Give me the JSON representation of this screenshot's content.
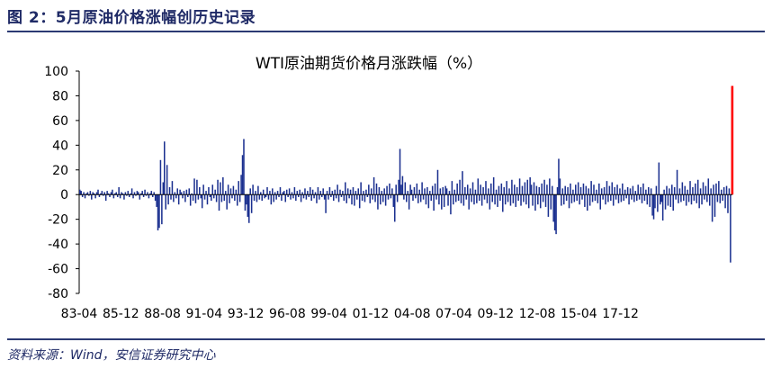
{
  "figure": {
    "title": "图 2：5月原油价格涨幅创历史记录",
    "source": "资料来源：Wind，安信证券研究中心"
  },
  "colors": {
    "accent": "#1f2a66",
    "bars": "#1a2f8f",
    "highlight": "#ff0000",
    "axis": "#000000"
  },
  "chart_data": {
    "type": "bar",
    "title": "WTI原油期货价格月涨跌幅（%）",
    "xlabel": "",
    "ylabel": "",
    "ylim": [
      -80,
      100
    ],
    "yticks": [
      100,
      80,
      60,
      40,
      20,
      0,
      -20,
      -40,
      -60,
      -80
    ],
    "xtick_labels": [
      "83-04",
      "85-12",
      "88-08",
      "91-04",
      "93-12",
      "96-08",
      "99-04",
      "01-12",
      "04-08",
      "07-04",
      "09-12",
      "12-08",
      "15-04",
      "17-12"
    ],
    "grid": false,
    "legend": "none",
    "series": [
      {
        "period_start": "1983-04",
        "period_end": "2020-05",
        "highlight_last": true,
        "values": [
          4,
          3,
          -2,
          2,
          -3,
          1,
          2,
          -1,
          3,
          -4,
          2,
          1,
          -3,
          2,
          4,
          -2,
          1,
          3,
          -1,
          2,
          -5,
          3,
          1,
          -2,
          2,
          4,
          -3,
          1,
          2,
          -2,
          6,
          -3,
          2,
          1,
          -4,
          2,
          -1,
          3,
          -2,
          1,
          5,
          -3,
          2,
          -1,
          3,
          2,
          -4,
          1,
          3,
          -2,
          4,
          -1,
          2,
          -3,
          1,
          3,
          -2,
          2,
          -5,
          -10,
          -29,
          -27,
          28,
          -24,
          10,
          43,
          -12,
          24,
          -8,
          6,
          -4,
          11,
          -6,
          2,
          -3,
          5,
          -8,
          4,
          2,
          -3,
          3,
          -6,
          4,
          -2,
          5,
          -9,
          1,
          -5,
          13,
          -7,
          12,
          -4,
          6,
          -3,
          -11,
          8,
          -4,
          3,
          -8,
          6,
          -2,
          -5,
          8,
          -3,
          4,
          -6,
          12,
          -13,
          10,
          -6,
          14,
          -5,
          3,
          -12,
          8,
          -7,
          5,
          -3,
          7,
          -5,
          4,
          -9,
          11,
          -6,
          16,
          32,
          45,
          -13,
          -8,
          -18,
          -23,
          5,
          -15,
          8,
          -5,
          3,
          -6,
          7,
          -4,
          2,
          -5,
          4,
          -3,
          -2,
          6,
          -4,
          3,
          -8,
          5,
          -6,
          2,
          -4,
          3,
          -2,
          6,
          -5,
          2,
          3,
          -6,
          4,
          -2,
          5,
          -4,
          2,
          -3,
          6,
          -5,
          3,
          -2,
          4,
          -6,
          2,
          -3,
          5,
          -4,
          3,
          -2,
          6,
          -5,
          4,
          -3,
          2,
          -7,
          6,
          -4,
          3,
          -2,
          5,
          -4,
          -15,
          3,
          -4,
          6,
          -2,
          3,
          -5,
          4,
          -3,
          8,
          -6,
          4,
          -2,
          3,
          -5,
          10,
          -7,
          5,
          -3,
          4,
          -8,
          6,
          -9,
          3,
          -4,
          5,
          -11,
          10,
          -5,
          3,
          -6,
          4,
          -2,
          8,
          -7,
          5,
          -4,
          14,
          -6,
          9,
          -12,
          6,
          -8,
          3,
          -6,
          5,
          -9,
          7,
          -4,
          9,
          -3,
          5,
          -10,
          -22,
          8,
          -6,
          12,
          37,
          8,
          15,
          -4,
          10,
          -6,
          3,
          -12,
          8,
          4,
          -5,
          6,
          -3,
          9,
          -7,
          4,
          -6,
          10,
          -4,
          5,
          -8,
          6,
          -11,
          3,
          -5,
          7,
          -13,
          9,
          -4,
          20,
          -8,
          5,
          -12,
          6,
          -10,
          7,
          5,
          -9,
          3,
          -16,
          11,
          -8,
          4,
          -6,
          9,
          -5,
          12,
          -7,
          19,
          -9,
          6,
          -4,
          8,
          -12,
          5,
          -6,
          10,
          -8,
          4,
          -7,
          13,
          -5,
          8,
          -9,
          6,
          -4,
          11,
          -7,
          5,
          -12,
          9,
          -6,
          14,
          -8,
          4,
          -10,
          7,
          -5,
          9,
          -14,
          6,
          -8,
          11,
          -6,
          5,
          -9,
          12,
          -7,
          8,
          -10,
          6,
          -5,
          13,
          -9,
          7,
          -6,
          10,
          -8,
          12,
          -11,
          14,
          8,
          -9,
          10,
          -13,
          7,
          -8,
          6,
          -11,
          9,
          -6,
          12,
          -10,
          8,
          -18,
          13,
          -12,
          7,
          -22,
          -29,
          -32,
          6,
          29,
          13,
          -9,
          5,
          -8,
          7,
          -5,
          6,
          -11,
          9,
          -7,
          4,
          -6,
          8,
          -5,
          10,
          -8,
          6,
          -4,
          9,
          -10,
          7,
          -13,
          5,
          -9,
          11,
          -6,
          8,
          -5,
          4,
          -7,
          9,
          -12,
          5,
          -4,
          6,
          -8,
          11,
          -6,
          7,
          -5,
          10,
          -9,
          6,
          -4,
          8,
          -7,
          5,
          -6,
          9,
          -5,
          4,
          -3,
          6,
          -8,
          5,
          -4,
          7,
          -6,
          3,
          -5,
          8,
          -4,
          6,
          -7,
          9,
          -5,
          4,
          -8,
          6,
          -10,
          5,
          -17,
          -20,
          -11,
          7,
          -14,
          26,
          -8,
          -6,
          -21,
          4,
          -12,
          7,
          -9,
          5,
          -10,
          8,
          -13,
          6,
          -4,
          20,
          -7,
          5,
          -6,
          10,
          -5,
          7,
          -9,
          4,
          -6,
          11,
          -8,
          6,
          -5,
          9,
          -7,
          12,
          -11,
          5,
          -8,
          10,
          -4,
          7,
          -6,
          13,
          -9,
          5,
          -22,
          8,
          -18,
          9,
          -6,
          11,
          -7,
          4,
          -5,
          6,
          -11,
          7,
          -15,
          5,
          -55,
          88
        ]
      }
    ]
  }
}
